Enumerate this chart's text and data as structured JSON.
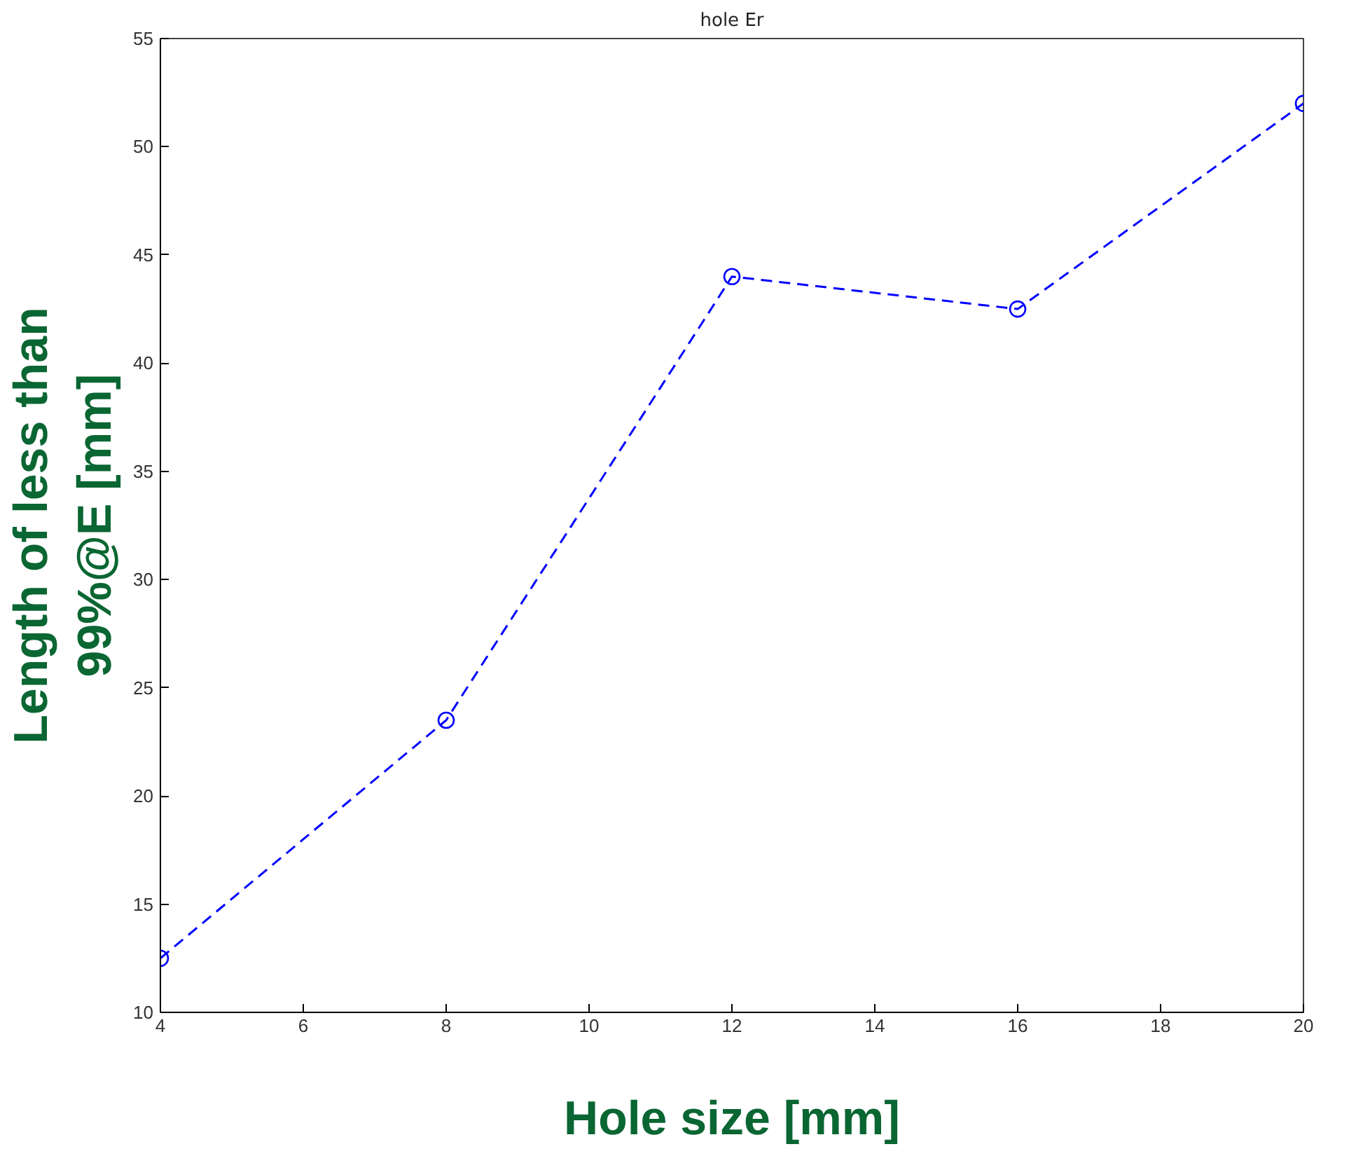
{
  "chart_data": {
    "type": "line",
    "title": "hole Er",
    "xlabel": "Hole size [mm]",
    "ylabel": "Length of less than\n99%@E [mm]",
    "x": [
      4,
      8,
      12,
      16,
      20
    ],
    "series": [
      {
        "color": "#0000ff",
        "values": [
          12.5,
          23.5,
          44,
          42.5,
          52
        ]
      }
    ],
    "xlim": [
      4,
      20
    ],
    "xticks": [
      4,
      6,
      8,
      10,
      12,
      14,
      16,
      18,
      20
    ],
    "ylim": [
      10,
      55
    ],
    "yticks": [
      10,
      15,
      20,
      25,
      30,
      35,
      40,
      45,
      50,
      55
    ],
    "grid": false,
    "marker": "circle",
    "line_style": "dashed"
  }
}
